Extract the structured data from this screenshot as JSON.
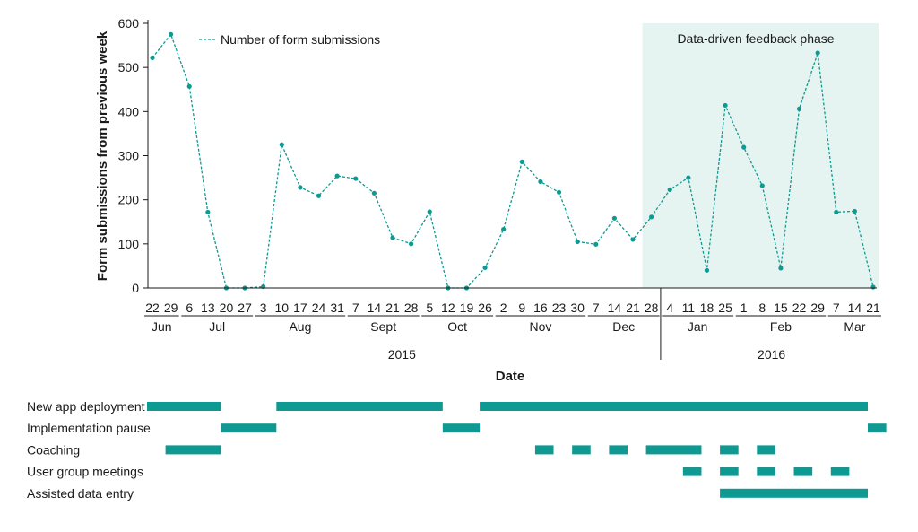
{
  "colors": {
    "series": "#0e9a92",
    "phase_background": "#e6f4f1",
    "bar": "#0e9a92",
    "axis": "#1a1a1a"
  },
  "chart_data": {
    "type": "line",
    "ylabel": "Form submissions from previous week",
    "xlabel": "Date",
    "ylim": [
      0,
      600
    ],
    "yticks": [
      0,
      100,
      200,
      300,
      400,
      500,
      600
    ],
    "legend": {
      "label": "Number of form submissions",
      "placement": "top-left",
      "style": "dashed line"
    },
    "phase_label": "Data-driven feedback phase",
    "phase_start": "2015-12-28",
    "phase_end": "2016-03-21",
    "series": [
      {
        "name": "Number of form submissions",
        "points": [
          [
            "2015-06-22",
            522
          ],
          [
            "2015-06-29",
            575
          ],
          [
            "2015-07-06",
            457
          ],
          [
            "2015-07-13",
            172
          ],
          [
            "2015-07-20",
            0
          ],
          [
            "2015-07-27",
            0
          ],
          [
            "2015-08-03",
            3
          ],
          [
            "2015-08-10",
            325
          ],
          [
            "2015-08-17",
            228
          ],
          [
            "2015-08-24",
            209
          ],
          [
            "2015-08-31",
            254
          ],
          [
            "2015-09-07",
            248
          ],
          [
            "2015-09-14",
            215
          ],
          [
            "2015-09-21",
            114
          ],
          [
            "2015-09-28",
            100
          ],
          [
            "2015-10-05",
            173
          ],
          [
            "2015-10-12",
            0
          ],
          [
            "2015-10-19",
            0
          ],
          [
            "2015-10-26",
            46
          ],
          [
            "2015-11-02",
            133
          ],
          [
            "2015-11-09",
            286
          ],
          [
            "2015-11-16",
            241
          ],
          [
            "2015-11-23",
            217
          ],
          [
            "2015-11-30",
            105
          ],
          [
            "2015-12-07",
            99
          ],
          [
            "2015-12-14",
            158
          ],
          [
            "2015-12-21",
            110
          ],
          [
            "2015-12-28",
            161
          ],
          [
            "2016-01-04",
            223
          ],
          [
            "2016-01-11",
            250
          ],
          [
            "2016-01-18",
            40
          ],
          [
            "2016-01-25",
            414
          ],
          [
            "2016-02-01",
            319
          ],
          [
            "2016-02-08",
            232
          ],
          [
            "2016-02-15",
            45
          ],
          [
            "2016-02-22",
            406
          ],
          [
            "2016-02-29",
            533
          ],
          [
            "2016-03-07",
            172
          ],
          [
            "2016-03-14",
            174
          ],
          [
            "2016-03-21",
            2
          ]
        ]
      }
    ],
    "x_day_labels": [
      "22",
      "29",
      "6",
      "13",
      "20",
      "27",
      "3",
      "10",
      "17",
      "24",
      "31",
      "7",
      "14",
      "21",
      "28",
      "5",
      "12",
      "19",
      "26",
      "2",
      "9",
      "16",
      "23",
      "30",
      "7",
      "14",
      "21",
      "28",
      "4",
      "11",
      "18",
      "25",
      "1",
      "8",
      "15",
      "22",
      "29",
      "7",
      "14",
      "21"
    ],
    "months": [
      {
        "label": "Jun",
        "from": "2015-06-22",
        "to": "2015-06-29"
      },
      {
        "label": "Jul",
        "from": "2015-07-06",
        "to": "2015-07-27"
      },
      {
        "label": "Aug",
        "from": "2015-08-03",
        "to": "2015-08-31"
      },
      {
        "label": "Sept",
        "from": "2015-09-07",
        "to": "2015-09-28"
      },
      {
        "label": "Oct",
        "from": "2015-10-05",
        "to": "2015-10-26"
      },
      {
        "label": "Nov",
        "from": "2015-11-02",
        "to": "2015-11-30"
      },
      {
        "label": "Dec",
        "from": "2015-12-07",
        "to": "2015-12-28"
      },
      {
        "label": "Jan",
        "from": "2016-01-04",
        "to": "2016-01-25"
      },
      {
        "label": "Feb",
        "from": "2016-02-01",
        "to": "2016-02-29"
      },
      {
        "label": "Mar",
        "from": "2016-03-07",
        "to": "2016-03-21"
      }
    ],
    "years": [
      {
        "label": "2015",
        "from": "2015-06-22",
        "to": "2015-12-28"
      },
      {
        "label": "2016",
        "from": "2016-01-04",
        "to": "2016-03-21"
      }
    ],
    "activities": [
      {
        "name": "New app deployment",
        "periods": [
          [
            "2015-06-22",
            "2015-07-20"
          ],
          [
            "2015-08-10",
            "2015-10-12"
          ],
          [
            "2015-10-26",
            "2016-03-21"
          ]
        ]
      },
      {
        "name": "Implementation pause",
        "periods": [
          [
            "2015-07-20",
            "2015-08-10"
          ],
          [
            "2015-10-12",
            "2015-10-26"
          ],
          [
            "2016-03-21",
            "2016-03-28"
          ]
        ]
      },
      {
        "name": "Coaching",
        "periods": [
          [
            "2015-06-29",
            "2015-07-20"
          ],
          [
            "2015-11-16",
            "2015-11-23"
          ],
          [
            "2015-11-30",
            "2015-12-07"
          ],
          [
            "2015-12-14",
            "2015-12-21"
          ],
          [
            "2015-12-28",
            "2016-01-18"
          ],
          [
            "2016-01-25",
            "2016-02-01"
          ],
          [
            "2016-02-08",
            "2016-02-15"
          ]
        ]
      },
      {
        "name": "User group meetings",
        "periods": [
          [
            "2016-01-11",
            "2016-01-18"
          ],
          [
            "2016-01-25",
            "2016-02-01"
          ],
          [
            "2016-02-08",
            "2016-02-15"
          ],
          [
            "2016-02-22",
            "2016-02-29"
          ],
          [
            "2016-03-07",
            "2016-03-14"
          ]
        ]
      },
      {
        "name": "Assisted data entry",
        "periods": [
          [
            "2016-01-25",
            "2016-03-21"
          ]
        ]
      }
    ]
  }
}
